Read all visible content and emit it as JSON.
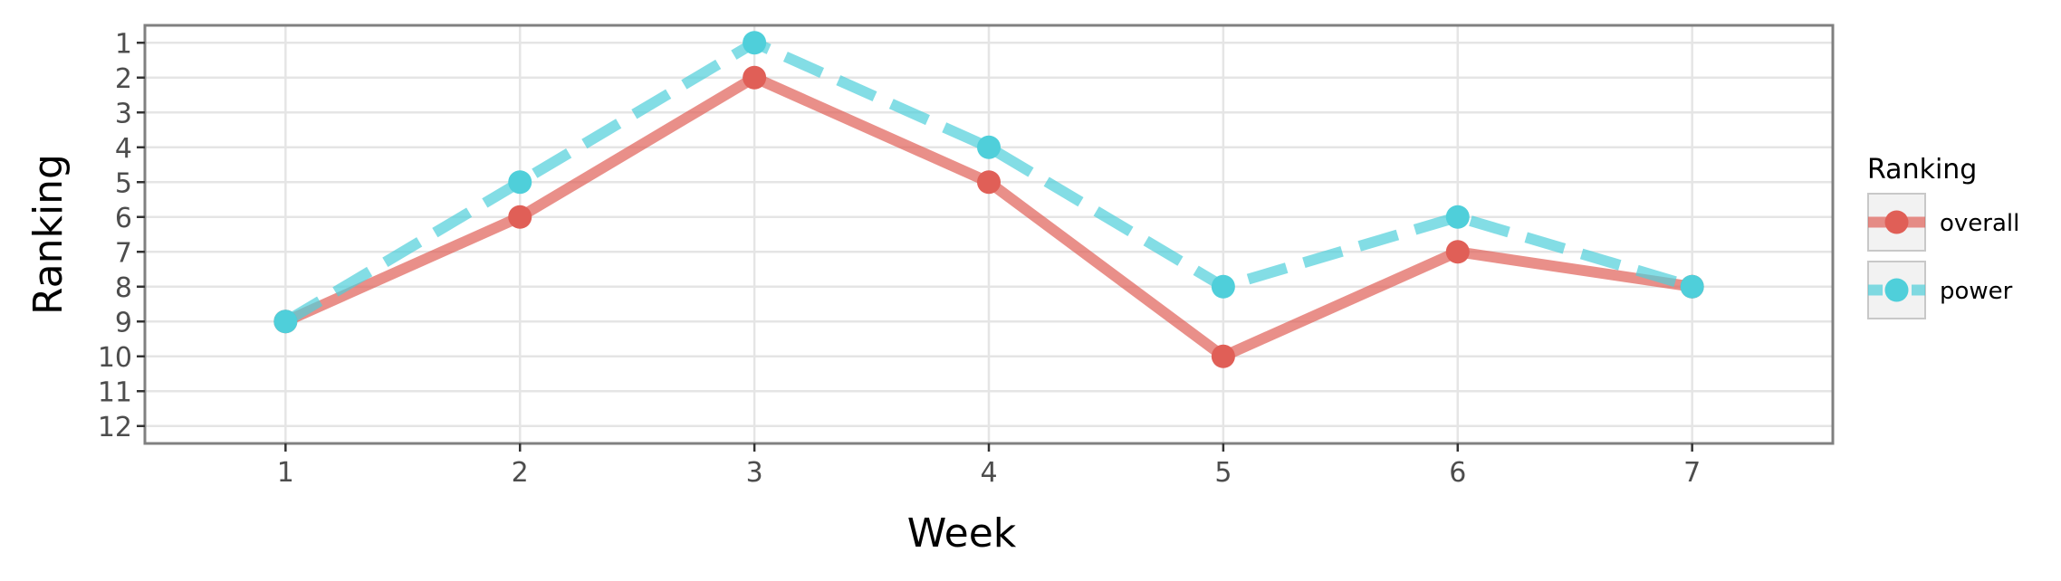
{
  "chart_data": {
    "type": "line",
    "xlabel": "Week",
    "ylabel": "Ranking",
    "x": [
      1,
      2,
      3,
      4,
      5,
      6,
      7
    ],
    "xlim": [
      0.4,
      7.6
    ],
    "ylim": [
      12.5,
      0.5
    ],
    "y_reversed": true,
    "x_ticks": [
      "1",
      "2",
      "3",
      "4",
      "5",
      "6",
      "7"
    ],
    "y_ticks": [
      "1",
      "2",
      "3",
      "4",
      "5",
      "6",
      "7",
      "8",
      "9",
      "10",
      "11",
      "12"
    ],
    "grid": true,
    "legend": {
      "title": "Ranking",
      "position": "right"
    },
    "series": [
      {
        "name": "overall",
        "values": [
          9,
          6,
          2,
          5,
          10,
          7,
          8
        ],
        "color": "#e05f57",
        "line_style": "solid"
      },
      {
        "name": "power",
        "values": [
          9,
          5,
          1,
          4,
          8,
          6,
          8
        ],
        "color": "#4fcfda",
        "line_style": "dashed"
      }
    ]
  }
}
